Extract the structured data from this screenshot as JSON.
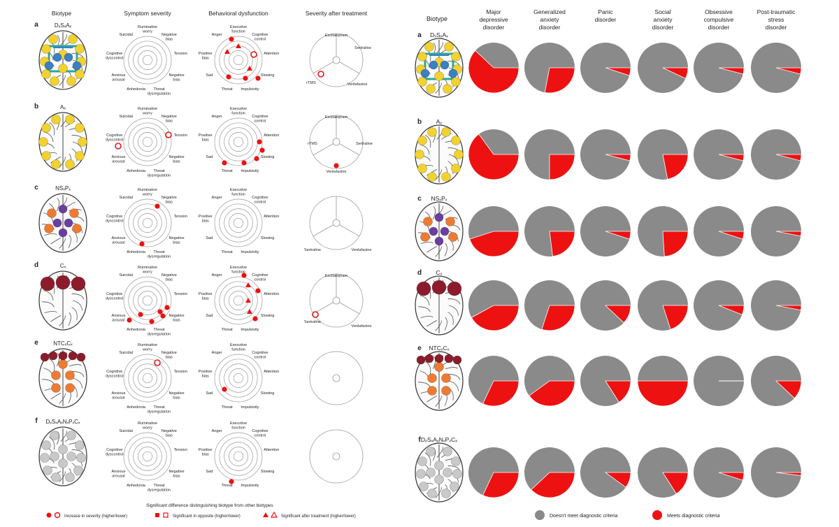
{
  "left": {
    "headers": [
      "Biotype",
      "Symptom severity",
      "Behavioral dysfunction",
      "Severity after treatment"
    ],
    "rows": [
      {
        "letter": "a",
        "biotype": "DₓSₓAₓ",
        "brain": "yellow-network"
      },
      {
        "letter": "b",
        "biotype": "Aₓ",
        "brain": "yellow-ring"
      },
      {
        "letter": "c",
        "biotype": "NSₓPₓ",
        "brain": "orange-purple"
      },
      {
        "letter": "d",
        "biotype": "Cₓ",
        "brain": "maroon-top"
      },
      {
        "letter": "e",
        "biotype": "NTCₓCₓ",
        "brain": "orange-spine"
      },
      {
        "letter": "f",
        "biotype": "DₓSₓAₓNₓPₓCₓ",
        "brain": "grey-network"
      }
    ],
    "symptom_labels": [
      "Ruminative worry",
      "Negative bias",
      "Tension",
      "Negative bias",
      "Threat dysregulation",
      "Anhedonia",
      "Anxious arousal",
      "Cognitive dyscontrol",
      "Suicidal"
    ],
    "behavior_labels": [
      "Executive function",
      "Cognitive control",
      "Attention",
      "Slowing",
      "Impulsivity",
      "Threat",
      "Sad",
      "Positive bias",
      "Anger"
    ],
    "treatment_labels": [
      "Escitalopram",
      "Sertraline",
      "Venlafaxine",
      "rTMS"
    ],
    "footnote_title": "Significant difference distinguishing biotype from other biotypes",
    "legend": [
      {
        "symbol": "circle-filled",
        "label": "Increase in severity (higher/lower)"
      },
      {
        "symbol": "square",
        "label": "Significant in opposite (higher/lower)"
      },
      {
        "symbol": "triangle",
        "label": "Significant after treatment (higher/lower)"
      }
    ]
  },
  "right": {
    "headers": [
      "Biotype",
      "Major depressive disorder",
      "Generalized anxiety disorder",
      "Panic disorder",
      "Social anxiety disorder",
      "Obsessive compulsive disorder",
      "Post-traumatic stress disorder"
    ],
    "rows": [
      {
        "letter": "a",
        "biotype": "DₓSₓAₓ",
        "brain": "yellow-network",
        "fractions": [
          0.62,
          0.28,
          0.05,
          0.07,
          0.04,
          0.04
        ]
      },
      {
        "letter": "b",
        "biotype": "Aₓ",
        "brain": "yellow-ring",
        "fractions": [
          0.65,
          0.25,
          0.04,
          0.22,
          0.04,
          0.04
        ]
      },
      {
        "letter": "c",
        "biotype": "NSₓPₓ",
        "brain": "orange-purple",
        "fractions": [
          0.45,
          0.23,
          0.05,
          0.24,
          0.05,
          0.03
        ]
      },
      {
        "letter": "d",
        "biotype": "Cₓ",
        "brain": "maroon-top",
        "fractions": [
          0.42,
          0.3,
          0.12,
          0.2,
          0.06,
          0.03
        ]
      },
      {
        "letter": "e",
        "biotype": "NTCₓCₓ",
        "brain": "orange-spine",
        "fractions": [
          0.32,
          0.4,
          0.16,
          0.5,
          0.0,
          0.12
        ]
      },
      {
        "letter": "f",
        "biotype": "DₓSₓAₓNₓPₓCₓ",
        "brain": "grey-network",
        "fractions": [
          0.32,
          0.38,
          0.1,
          0.16,
          0.05,
          0.02
        ]
      }
    ],
    "legend": [
      {
        "label": "Doesn't meet diagnostic criteria",
        "color": "#8a8a8a"
      },
      {
        "label": "Meets diagnostic criteria",
        "color": "#ee1111"
      }
    ]
  },
  "colors": {
    "red": "#ee1111",
    "grey": "#8a8a8a",
    "line": "#999999"
  }
}
